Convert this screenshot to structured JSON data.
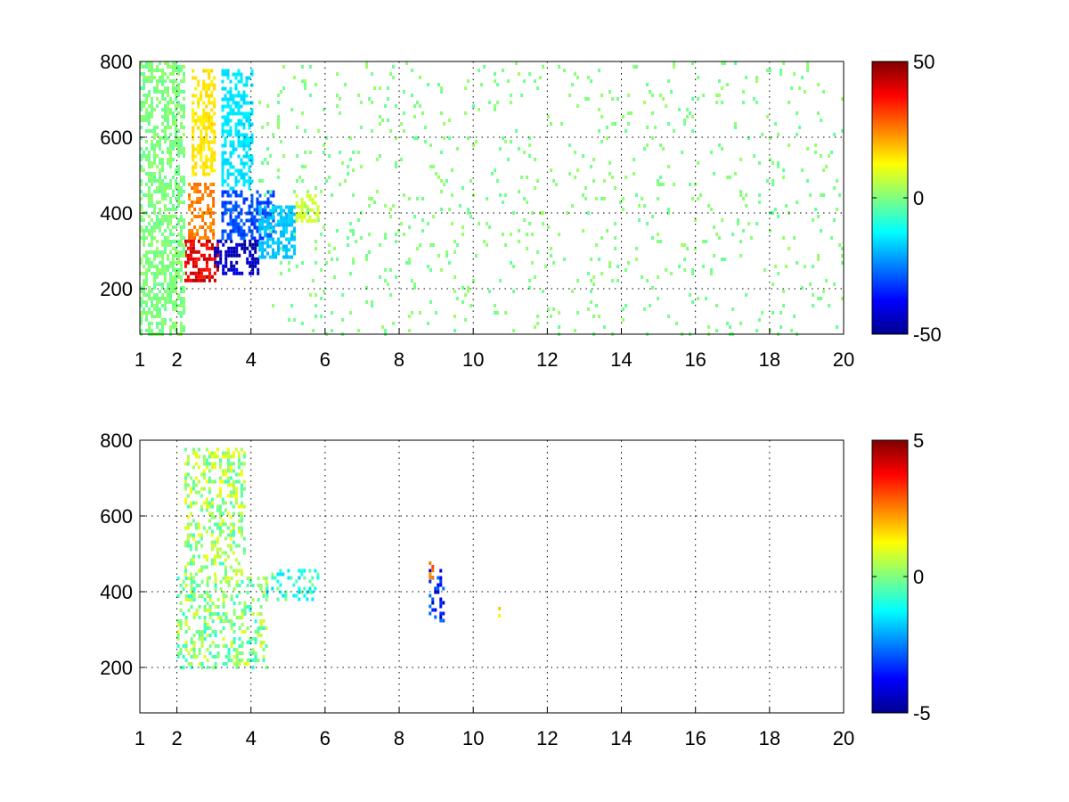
{
  "chart_data": [
    {
      "type": "heatmap",
      "title": "",
      "xlabel": "",
      "ylabel": "",
      "xlim": [
        1,
        20
      ],
      "ylim": [
        80,
        800
      ],
      "x_ticks": [
        1,
        2,
        4,
        6,
        8,
        10,
        12,
        14,
        16,
        18,
        20
      ],
      "y_ticks": [
        200,
        400,
        600,
        800
      ],
      "grid": true,
      "colormap": "jet",
      "colorbar": {
        "min": -50,
        "max": 50,
        "ticks": [
          50,
          0,
          -50
        ]
      },
      "regions": [
        {
          "x": [
            2.2,
            3.1
          ],
          "y": [
            220,
            330
          ],
          "value": 40
        },
        {
          "x": [
            2.3,
            3.0
          ],
          "y": [
            330,
            480
          ],
          "value": 25
        },
        {
          "x": [
            2.4,
            3.0
          ],
          "y": [
            500,
            780
          ],
          "value": 15
        },
        {
          "x": [
            3.0,
            4.2
          ],
          "y": [
            240,
            330
          ],
          "value": -45
        },
        {
          "x": [
            3.2,
            4.6
          ],
          "y": [
            330,
            460
          ],
          "value": -30
        },
        {
          "x": [
            3.2,
            4.0
          ],
          "y": [
            460,
            780
          ],
          "value": -15
        },
        {
          "x": [
            4.2,
            5.2
          ],
          "y": [
            280,
            420
          ],
          "value": -18
        },
        {
          "x": [
            5.2,
            5.8
          ],
          "y": [
            380,
            450
          ],
          "value": 8
        },
        {
          "x": [
            1.0,
            2.2
          ],
          "y": [
            80,
            800
          ],
          "value": 0
        },
        {
          "x": [
            4.2,
            20.0
          ],
          "y": [
            80,
            800
          ],
          "value": 0
        }
      ]
    },
    {
      "type": "heatmap",
      "title": "",
      "xlabel": "",
      "ylabel": "",
      "xlim": [
        1,
        20
      ],
      "ylim": [
        80,
        800
      ],
      "x_ticks": [
        1,
        2,
        4,
        6,
        8,
        10,
        12,
        14,
        16,
        18,
        20
      ],
      "y_ticks": [
        200,
        400,
        600,
        800
      ],
      "grid": true,
      "colormap": "jet",
      "colorbar": {
        "min": -5,
        "max": 5,
        "ticks": [
          5,
          0,
          -5
        ]
      },
      "regions": [
        {
          "x": [
            2.0,
            4.4
          ],
          "y": [
            200,
            440
          ],
          "value": 0
        },
        {
          "x": [
            2.2,
            3.8
          ],
          "y": [
            440,
            780
          ],
          "value": 0.3
        },
        {
          "x": [
            4.4,
            5.8
          ],
          "y": [
            380,
            460
          ],
          "value": -0.8
        },
        {
          "x": [
            8.8,
            9.2
          ],
          "y": [
            320,
            460
          ],
          "value": -3.5
        },
        {
          "x": [
            8.8,
            8.9
          ],
          "y": [
            440,
            480
          ],
          "value": 3
        },
        {
          "x": [
            10.6,
            10.7
          ],
          "y": [
            340,
            360
          ],
          "value": 1
        }
      ]
    }
  ]
}
